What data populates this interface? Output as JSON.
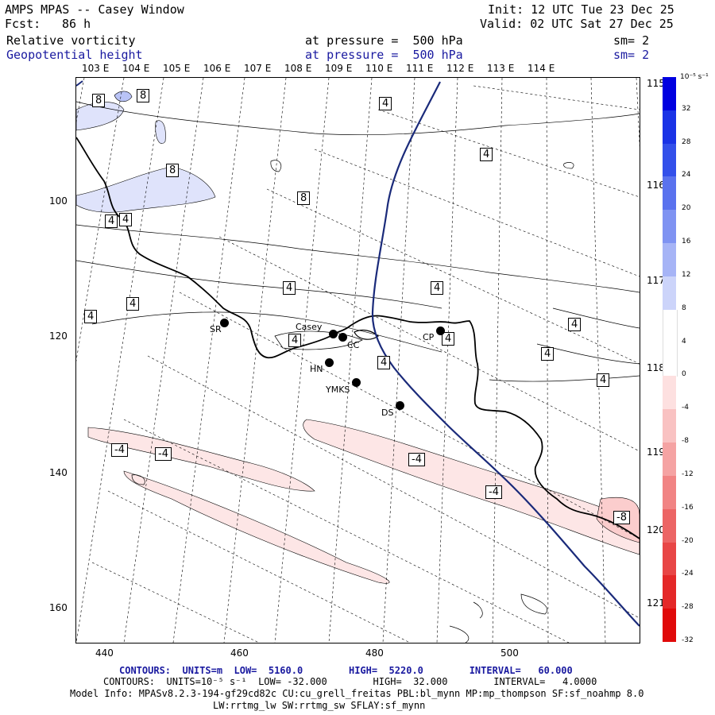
{
  "header": {
    "title": "AMPS MPAS -- Casey Window",
    "fcst_label": "Fcst:",
    "fcst_value": "86 h",
    "init": "Init: 12 UTC Tue 23 Dec 25",
    "valid": "Valid: 02 UTC Sat 27 Dec 25",
    "field1_name": "Relative vorticity",
    "field1_level": "at pressure =  500 hPa",
    "field1_sm": "sm= 2",
    "field2_name": "Geopotential height",
    "field2_level": "at pressure =  500 hPa",
    "field2_sm": "sm= 2"
  },
  "top_longitudes": [
    "103 E",
    "104 E",
    "105 E",
    "106 E",
    "107 E",
    "108 E",
    "109 E",
    "110 E",
    "111 E",
    "112 E",
    "113 E",
    "114 E"
  ],
  "right_longitudes": [
    "115 E",
    "116 E",
    "117 E",
    "118 E",
    "119 E",
    "120 E",
    "121 E"
  ],
  "y_ticks": [
    "100",
    "120",
    "140",
    "160"
  ],
  "x_ticks": [
    "440",
    "460",
    "480",
    "500"
  ],
  "stations": [
    {
      "name": "SR"
    },
    {
      "name": "Casey"
    },
    {
      "name": "CC"
    },
    {
      "name": "HN"
    },
    {
      "name": "YMKS"
    },
    {
      "name": "DS"
    },
    {
      "name": "CP"
    }
  ],
  "contour_labels": [
    "8",
    "8",
    "4",
    "4",
    "8",
    "8",
    "4",
    "4",
    "4",
    "4",
    "4",
    "4",
    "4",
    "4",
    "4",
    "4",
    "4",
    "4",
    "-4",
    "-4",
    "-4",
    "-4",
    "-8"
  ],
  "colorbar": {
    "units": "10⁻⁵ s⁻¹",
    "ticks": [
      "32",
      "28",
      "24",
      "20",
      "16",
      "12",
      "8",
      "4",
      "0",
      "-4",
      "-8",
      "-12",
      "-16",
      "-20",
      "-24",
      "-28",
      "-32"
    ],
    "colors": [
      "#0000e0",
      "#1a33e6",
      "#3350ea",
      "#5a72ee",
      "#7f93f2",
      "#a6b4f6",
      "#ccd4fa",
      "#ffffff",
      "#ffffff",
      "#fde0e0",
      "#f9c2c2",
      "#f5a3a3",
      "#f18484",
      "#ec6565",
      "#e84646",
      "#e42828",
      "#e00a0a"
    ]
  },
  "footer": {
    "line1": "CONTOURS:  UNITS=m  LOW=  5160.0        HIGH=  5220.0        INTERVAL=   60.000",
    "line2": "CONTOURS:  UNITS=10⁻⁵ s⁻¹  LOW= -32.000        HIGH=  32.000        INTERVAL=   4.0000",
    "line3": "Model Info: MPASv8.2.3-194-gf29cd82c CU:cu_grell_freitas PBL:bl_mynn MP:mp_thompson SF:sf_noahmp 8.0",
    "line4": "LW:rrtmg_lw SW:rrtmg_sw SFLAY:sf_mynn"
  }
}
